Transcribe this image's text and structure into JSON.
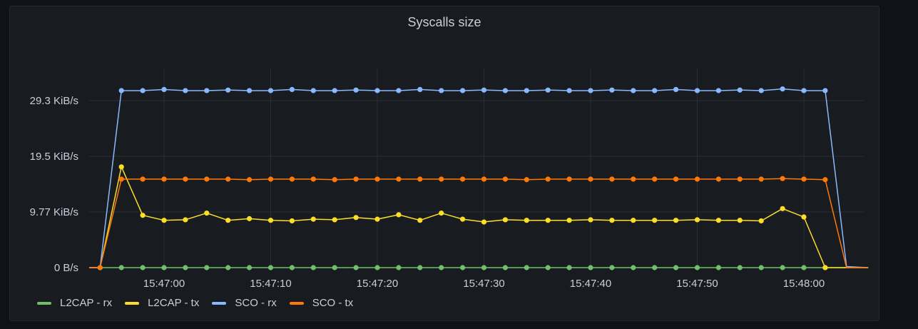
{
  "panel": {
    "title": "Syscalls size"
  },
  "legend": [
    {
      "label": "L2CAP - rx",
      "color": "#73bf69"
    },
    {
      "label": "L2CAP - tx",
      "color": "#fade2a"
    },
    {
      "label": "SCO - rx",
      "color": "#8ab8ff"
    },
    {
      "label": "SCO - tx",
      "color": "#ff780a"
    }
  ],
  "chart_data": {
    "type": "line",
    "title": "Syscalls size",
    "xlabel": "",
    "ylabel": "",
    "unit": "B/s",
    "ylim": [
      0,
      38000
    ],
    "y_ticks": [
      {
        "label": "0 B/s",
        "value": 0
      },
      {
        "label": "9.77 KiB/s",
        "value": 10000
      },
      {
        "label": "19.5 KiB/s",
        "value": 20000
      },
      {
        "label": "29.3 KiB/s",
        "value": 30000
      }
    ],
    "x_ticks": [
      "15:47:00",
      "15:47:10",
      "15:47:20",
      "15:47:30",
      "15:47:40",
      "15:47:50",
      "15:48:00"
    ],
    "x_tick_seconds": [
      0,
      10,
      20,
      30,
      40,
      50,
      60
    ],
    "grid": true,
    "legend_position": "bottom",
    "x_seconds": [
      -6,
      -4,
      -2,
      0,
      2,
      4,
      6,
      8,
      10,
      12,
      14,
      16,
      18,
      20,
      22,
      24,
      26,
      28,
      30,
      32,
      34,
      36,
      38,
      40,
      42,
      44,
      46,
      48,
      50,
      52,
      54,
      56,
      58,
      60,
      62,
      64,
      66
    ],
    "x_end_seconds": 67.5,
    "series": [
      {
        "name": "L2CAP - rx",
        "color": "#73bf69",
        "values": [
          0,
          0,
          0,
          0,
          0,
          0,
          0,
          0,
          0,
          0,
          0,
          0,
          0,
          0,
          0,
          0,
          0,
          0,
          0,
          0,
          0,
          0,
          0,
          0,
          0,
          0,
          0,
          0,
          0,
          0,
          0,
          0,
          0,
          0,
          0,
          0,
          0
        ],
        "tail": 0
      },
      {
        "name": "L2CAP - tx",
        "color": "#fade2a",
        "values": [
          0,
          18100,
          9400,
          8500,
          8600,
          9800,
          8500,
          8800,
          8500,
          8400,
          8700,
          8600,
          9000,
          8700,
          9500,
          8500,
          9800,
          8700,
          8200,
          8600,
          8500,
          8500,
          8500,
          8600,
          8500,
          8500,
          8500,
          8500,
          8600,
          8500,
          8500,
          8400,
          10600,
          9100,
          0,
          0,
          0
        ],
        "tail": 0
      },
      {
        "name": "SCO - rx",
        "color": "#8ab8ff",
        "values": [
          0,
          31800,
          31800,
          32000,
          31800,
          31800,
          31900,
          31800,
          31800,
          32000,
          31800,
          31800,
          31900,
          31800,
          31800,
          32000,
          31800,
          31800,
          31900,
          31800,
          31800,
          31900,
          31800,
          31800,
          31900,
          31800,
          31800,
          32000,
          31800,
          31800,
          31900,
          31800,
          32100,
          31800,
          31800,
          200,
          0
        ],
        "tail": 0
      },
      {
        "name": "SCO - tx",
        "color": "#ff780a",
        "values": [
          0,
          15900,
          15900,
          15900,
          15900,
          15900,
          15900,
          15800,
          15900,
          15900,
          15900,
          15800,
          15900,
          15900,
          15900,
          15900,
          15900,
          15900,
          15900,
          15900,
          15800,
          15900,
          15900,
          15900,
          15900,
          15900,
          15900,
          15900,
          15900,
          15900,
          15900,
          15900,
          16000,
          15900,
          15800,
          0,
          0
        ],
        "tail": 0
      }
    ]
  }
}
